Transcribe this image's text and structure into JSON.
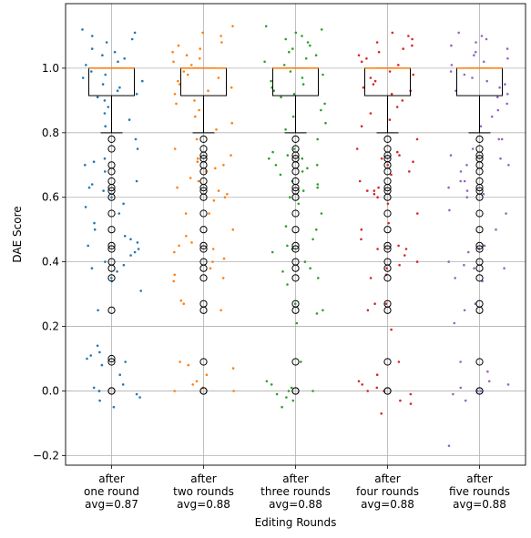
{
  "chart_data": {
    "type": "box",
    "xlabel": "Editing Rounds",
    "ylabel": "DAE Score",
    "ylim": [
      -0.23,
      1.2
    ],
    "yticks": [
      -0.2,
      0.0,
      0.2,
      0.4,
      0.6,
      0.8,
      1.0
    ],
    "ytick_labels": [
      "−0.2",
      "0.0",
      "0.2",
      "0.4",
      "0.6",
      "0.8",
      "1.0"
    ],
    "grid": true,
    "categories": [
      [
        "after",
        "one round",
        "avg=0.87"
      ],
      [
        "after",
        "two rounds",
        "avg=0.88"
      ],
      [
        "after",
        "three rounds",
        "avg=0.88"
      ],
      [
        "after",
        "four rounds",
        "avg=0.88"
      ],
      [
        "after",
        "five rounds",
        "avg=0.88"
      ]
    ],
    "series": [
      {
        "color": "#1f77b4",
        "box": {
          "q1": 0.915,
          "median": 1.0,
          "q3": 1.0,
          "whisker_low": 0.8,
          "whisker_high": 1.0
        },
        "outliers": [
          0.78,
          0.75,
          0.7,
          0.68,
          0.65,
          0.63,
          0.62,
          0.6,
          0.55,
          0.5,
          0.45,
          0.44,
          0.4,
          0.38,
          0.35,
          0.25,
          0.1,
          0.09,
          0.0,
          0.0
        ],
        "extra_points": [
          1.12,
          1.11,
          1.1,
          1.09,
          1.08,
          1.06,
          1.05,
          1.04,
          1.03,
          1.02,
          1.01,
          0.99,
          0.98,
          0.97,
          0.96,
          0.95,
          0.94,
          0.93,
          0.92,
          0.91,
          0.9,
          0.88,
          0.86,
          0.84,
          0.82,
          0.72,
          0.71,
          0.64,
          0.58,
          0.57,
          0.52,
          0.48,
          0.47,
          0.46,
          0.43,
          0.42,
          0.39,
          0.37,
          0.34,
          0.31,
          0.14,
          0.12,
          0.11,
          0.08,
          0.05,
          0.02,
          0.01,
          -0.01,
          -0.02,
          -0.03,
          -0.05
        ]
      },
      {
        "color": "#ff7f0e",
        "box": {
          "q1": 0.915,
          "median": 1.0,
          "q3": 1.0,
          "whisker_low": 0.8,
          "whisker_high": 1.0
        },
        "outliers": [
          0.78,
          0.75,
          0.73,
          0.72,
          0.7,
          0.68,
          0.65,
          0.63,
          0.62,
          0.6,
          0.55,
          0.5,
          0.45,
          0.44,
          0.4,
          0.38,
          0.35,
          0.27,
          0.25,
          0.09,
          0.0,
          0.0
        ],
        "extra_points": [
          1.13,
          1.11,
          1.1,
          1.08,
          1.07,
          1.06,
          1.05,
          1.04,
          1.03,
          1.02,
          1.01,
          0.99,
          0.98,
          0.97,
          0.96,
          0.95,
          0.94,
          0.93,
          0.92,
          0.9,
          0.89,
          0.87,
          0.85,
          0.83,
          0.81,
          0.71,
          0.69,
          0.66,
          0.61,
          0.59,
          0.55,
          0.48,
          0.46,
          0.43,
          0.41,
          0.36,
          0.34,
          0.28,
          0.08,
          0.07,
          0.05,
          0.03,
          0.02,
          0.01
        ]
      },
      {
        "color": "#2ca02c",
        "box": {
          "q1": 0.915,
          "median": 1.0,
          "q3": 1.0,
          "whisker_low": 0.8,
          "whisker_high": 1.0
        },
        "outliers": [
          0.78,
          0.75,
          0.73,
          0.72,
          0.7,
          0.68,
          0.65,
          0.63,
          0.62,
          0.6,
          0.55,
          0.5,
          0.45,
          0.44,
          0.4,
          0.38,
          0.35,
          0.27,
          0.25,
          0.09,
          0.0,
          0.0
        ],
        "extra_points": [
          1.13,
          1.12,
          1.11,
          1.1,
          1.09,
          1.08,
          1.07,
          1.06,
          1.05,
          1.04,
          1.03,
          1.02,
          1.01,
          0.99,
          0.98,
          0.97,
          0.96,
          0.95,
          0.94,
          0.93,
          0.92,
          0.91,
          0.89,
          0.87,
          0.85,
          0.83,
          0.81,
          0.74,
          0.72,
          0.7,
          0.69,
          0.67,
          0.64,
          0.58,
          0.51,
          0.47,
          0.43,
          0.37,
          0.33,
          0.24,
          0.21,
          0.03,
          0.02,
          0.01,
          -0.01,
          -0.02,
          -0.03,
          -0.05
        ]
      },
      {
        "color": "#d62728",
        "box": {
          "q1": 0.915,
          "median": 1.0,
          "q3": 1.0,
          "whisker_low": 0.8,
          "whisker_high": 1.0
        },
        "outliers": [
          0.78,
          0.75,
          0.73,
          0.72,
          0.7,
          0.68,
          0.65,
          0.63,
          0.62,
          0.6,
          0.55,
          0.5,
          0.45,
          0.44,
          0.4,
          0.38,
          0.35,
          0.27,
          0.25,
          0.09,
          0.0,
          0.0
        ],
        "extra_points": [
          1.11,
          1.1,
          1.09,
          1.08,
          1.07,
          1.06,
          1.05,
          1.04,
          1.03,
          1.02,
          1.01,
          0.99,
          0.98,
          0.97,
          0.96,
          0.95,
          0.94,
          0.93,
          0.92,
          0.9,
          0.88,
          0.86,
          0.84,
          0.82,
          0.74,
          0.71,
          0.67,
          0.62,
          0.61,
          0.58,
          0.52,
          0.47,
          0.44,
          0.42,
          0.39,
          0.36,
          0.27,
          0.19,
          0.05,
          0.03,
          0.02,
          0.01,
          -0.01,
          -0.03,
          -0.04,
          -0.07
        ]
      },
      {
        "color": "#9467bd",
        "box": {
          "q1": 0.915,
          "median": 1.0,
          "q3": 1.0,
          "whisker_low": 0.8,
          "whisker_high": 1.0
        },
        "outliers": [
          0.78,
          0.75,
          0.73,
          0.72,
          0.7,
          0.68,
          0.65,
          0.63,
          0.62,
          0.6,
          0.55,
          0.5,
          0.45,
          0.44,
          0.4,
          0.38,
          0.35,
          0.27,
          0.25,
          0.09,
          0.0,
          0.0
        ],
        "extra_points": [
          1.11,
          1.1,
          1.09,
          1.08,
          1.07,
          1.06,
          1.05,
          1.04,
          1.03,
          1.02,
          1.01,
          0.99,
          0.98,
          0.97,
          0.96,
          0.95,
          0.94,
          0.93,
          0.92,
          0.91,
          0.89,
          0.87,
          0.85,
          0.82,
          0.78,
          0.7,
          0.65,
          0.61,
          0.56,
          0.45,
          0.43,
          0.39,
          0.38,
          0.34,
          0.21,
          0.06,
          0.03,
          0.02,
          0.01,
          -0.01,
          -0.03,
          -0.17
        ]
      }
    ]
  }
}
